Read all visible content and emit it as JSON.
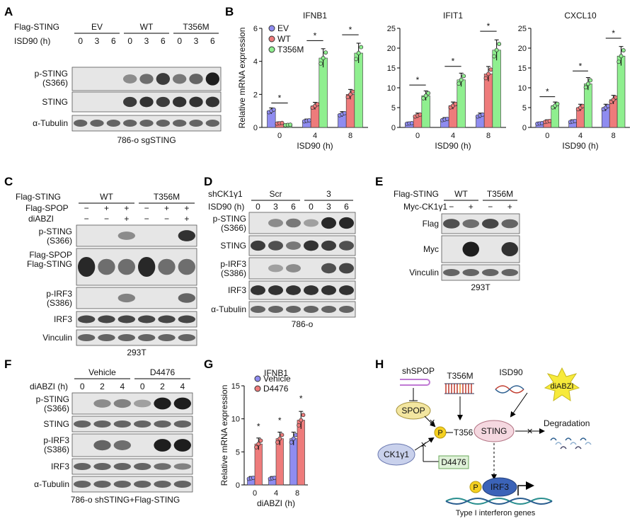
{
  "panels": [
    "A",
    "B",
    "C",
    "D",
    "E",
    "F",
    "G",
    "H"
  ],
  "colors": {
    "ev": "#8f8cf0",
    "wt": "#ee7b7b",
    "t356m": "#8fef8f",
    "vehicle": "#8f8cf0",
    "d4476": "#ee7b7b",
    "blot_bg": "#e6e6e6"
  },
  "panelA": {
    "row_label1": "Flag-STING",
    "row_label2": "ISD90 (h)",
    "groups": [
      "EV",
      "WT",
      "T356M"
    ],
    "times": [
      "0",
      "3",
      "6",
      "0",
      "3",
      "6",
      "0",
      "3",
      "6"
    ],
    "blots": [
      "p-STING\n(S366)",
      "STING",
      "α-Tubulin"
    ],
    "caption": "786-o  sgSTING"
  },
  "panelB": {
    "ylabel": "Relative mRNA expression",
    "xlabel": "ISD90 (h)",
    "legend": [
      "EV",
      "WT",
      "T356M"
    ],
    "sig": "*"
  },
  "chart_data": [
    {
      "type": "bar",
      "title": "IFNB1",
      "xlabel": "ISD90 (h)",
      "ylabel": "Relative mRNA expression",
      "categories": [
        "0",
        "4",
        "8"
      ],
      "ylim": [
        0,
        6
      ],
      "yticks": [
        0,
        2,
        4,
        6
      ],
      "series": [
        {
          "name": "EV",
          "values": [
            1.0,
            0.4,
            0.8
          ]
        },
        {
          "name": "WT",
          "values": [
            0.25,
            1.3,
            2.0
          ]
        },
        {
          "name": "T356M",
          "values": [
            0.15,
            4.2,
            4.5
          ]
        }
      ]
    },
    {
      "type": "bar",
      "title": "IFIT1",
      "xlabel": "ISD90 (h)",
      "ylabel": "",
      "categories": [
        "0",
        "4",
        "8"
      ],
      "ylim": [
        0,
        25
      ],
      "yticks": [
        0,
        5,
        10,
        15,
        20,
        25
      ],
      "series": [
        {
          "name": "EV",
          "values": [
            1.0,
            2.0,
            3.0
          ]
        },
        {
          "name": "WT",
          "values": [
            3.0,
            5.5,
            13.5
          ]
        },
        {
          "name": "T356M",
          "values": [
            8.0,
            12.0,
            19.5
          ]
        }
      ]
    },
    {
      "type": "bar",
      "title": "CXCL10",
      "xlabel": "ISD90 (h)",
      "ylabel": "",
      "categories": [
        "0",
        "4",
        "8"
      ],
      "ylim": [
        0,
        25
      ],
      "yticks": [
        0,
        5,
        10,
        15,
        20,
        25
      ],
      "series": [
        {
          "name": "EV",
          "values": [
            1.0,
            1.5,
            5.0
          ]
        },
        {
          "name": "WT",
          "values": [
            1.5,
            5.0,
            7.0
          ]
        },
        {
          "name": "T356M",
          "values": [
            5.5,
            11.0,
            18.0
          ]
        }
      ]
    },
    {
      "type": "bar",
      "title": "IFNB1",
      "xlabel": "diABZI (h)",
      "ylabel": "Relative mRNA expression",
      "categories": [
        "0",
        "4",
        "8"
      ],
      "ylim": [
        0,
        15
      ],
      "yticks": [
        0,
        5,
        10,
        15
      ],
      "series": [
        {
          "name": "Vehicle",
          "values": [
            1.0,
            1.0,
            7.0
          ]
        },
        {
          "name": "D4476",
          "values": [
            6.2,
            7.0,
            9.8
          ]
        }
      ]
    }
  ],
  "panelC": {
    "row_labels": [
      "Flag-STING",
      "Flag-SPOP",
      "diABZI"
    ],
    "groups": [
      "WT",
      "T356M"
    ],
    "spop": [
      "−",
      "+",
      "+",
      "−",
      "+",
      "+"
    ],
    "diabzi": [
      "−",
      "−",
      "+",
      "−",
      "−",
      "+"
    ],
    "blots": [
      "p-STING\n(S366)",
      "Flag-SPOP\nFlag-STING",
      "p-IRF3\n(S386)",
      "IRF3",
      "Vinculin"
    ],
    "caption": "293T"
  },
  "panelD": {
    "row_labels": [
      "shCK1γ1",
      "ISD90 (h)"
    ],
    "groups": [
      "Scr",
      "3"
    ],
    "times": [
      "0",
      "3",
      "6",
      "0",
      "3",
      "6"
    ],
    "blots": [
      "p-STING\n(S366)",
      "STING",
      "p-IRF3\n(S386)",
      "IRF3",
      "α-Tubulin"
    ],
    "caption": "786-o"
  },
  "panelE": {
    "row_labels": [
      "Flag-STING",
      "Myc-CK1γ1"
    ],
    "groups": [
      "WT",
      "T356M"
    ],
    "myc": [
      "−",
      "+",
      "−",
      "+"
    ],
    "blots": [
      "Flag",
      "Myc",
      "Vinculin"
    ],
    "caption": "293T"
  },
  "panelF": {
    "row_label": "diABZI (h)",
    "groups": [
      "Vehicle",
      "D4476"
    ],
    "times": [
      "0",
      "2",
      "4",
      "0",
      "2",
      "4"
    ],
    "blots": [
      "p-STING\n(S366)",
      "STING",
      "p-IRF3\n(S386)",
      "IRF3",
      "α-Tubulin"
    ],
    "caption": "786-o shSTING+Flag-STING"
  },
  "panelG": {
    "title": "IFNB1",
    "legend": [
      "Vehicle",
      "D4476"
    ],
    "xlabel": "diABZI (h)",
    "ylabel": "Relative mRNA expression"
  },
  "panelH": {
    "shspop": "shSPOP",
    "spop": "SPOP",
    "t356m": "T356M",
    "isd90": "ISD90",
    "diabzi": "diABZI",
    "p": "P",
    "t356": "T356",
    "sting": "STING",
    "degradation": "Degradation",
    "ck1": "CK1γ1",
    "d4476": "D4476",
    "irf3": "IRF3",
    "genes": "Type I interferon genes"
  }
}
